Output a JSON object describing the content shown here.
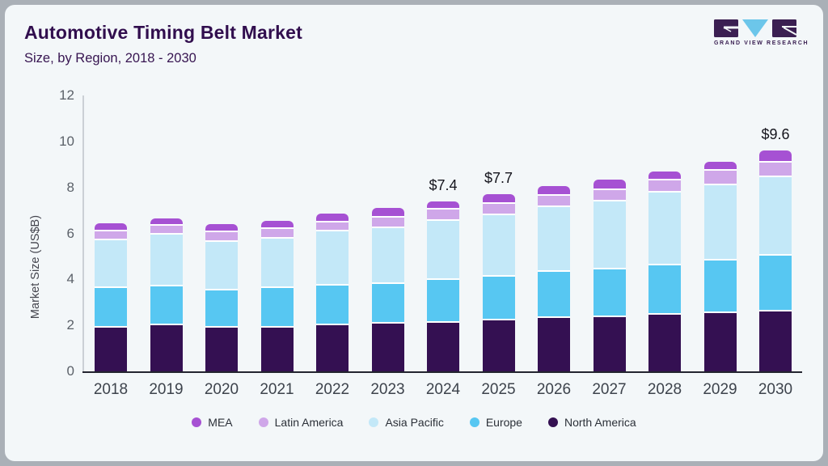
{
  "header": {
    "title": "Automotive Timing Belt Market",
    "subtitle": "Size, by Region, 2018 - 2030"
  },
  "logo": {
    "text": "GRAND VIEW RESEARCH",
    "block_color": "#3b1f52",
    "triangle_color": "#6cc6ea"
  },
  "chart_data": {
    "type": "bar",
    "stacked": true,
    "title": "Automotive Timing Belt Market",
    "subtitle": "Size, by Region, 2018 - 2030",
    "xlabel": "",
    "ylabel": "Market Size (US$B)",
    "ylim": [
      0,
      12
    ],
    "yticks": [
      0,
      2,
      4,
      6,
      8,
      10,
      12
    ],
    "grid": false,
    "legend_position": "bottom",
    "categories": [
      "2018",
      "2019",
      "2020",
      "2021",
      "2022",
      "2023",
      "2024",
      "2025",
      "2026",
      "2027",
      "2028",
      "2029",
      "2030"
    ],
    "series": [
      {
        "name": "North America",
        "color": "#341052",
        "values": [
          2.0,
          2.1,
          2.0,
          2.0,
          2.1,
          2.15,
          2.2,
          2.3,
          2.4,
          2.45,
          2.55,
          2.6,
          2.7
        ]
      },
      {
        "name": "Europe",
        "color": "#57c7f2",
        "values": [
          1.7,
          1.7,
          1.6,
          1.7,
          1.7,
          1.75,
          1.85,
          1.9,
          2.0,
          2.05,
          2.15,
          2.3,
          2.4
        ]
      },
      {
        "name": "Asia Pacific",
        "color": "#c3e8f8",
        "values": [
          2.1,
          2.25,
          2.15,
          2.2,
          2.4,
          2.45,
          2.6,
          2.7,
          2.85,
          3.0,
          3.2,
          3.3,
          3.45
        ]
      },
      {
        "name": "Latin America",
        "color": "#cfa7e9",
        "values": [
          0.35,
          0.35,
          0.35,
          0.35,
          0.35,
          0.4,
          0.45,
          0.45,
          0.45,
          0.45,
          0.45,
          0.6,
          0.6
        ]
      },
      {
        "name": "MEA",
        "color": "#a651d3",
        "values": [
          0.3,
          0.25,
          0.3,
          0.3,
          0.3,
          0.35,
          0.3,
          0.35,
          0.35,
          0.4,
          0.35,
          0.3,
          0.45
        ]
      }
    ],
    "totals": [
      6.45,
      6.65,
      6.4,
      6.55,
      6.85,
      7.1,
      7.4,
      7.7,
      8.05,
      8.35,
      8.7,
      9.1,
      9.6
    ],
    "bar_labels": {
      "2024": "$7.4",
      "2025": "$7.7",
      "2030": "$9.6"
    },
    "legend": [
      "MEA",
      "Latin America",
      "Asia Pacific",
      "Europe",
      "North America"
    ]
  }
}
